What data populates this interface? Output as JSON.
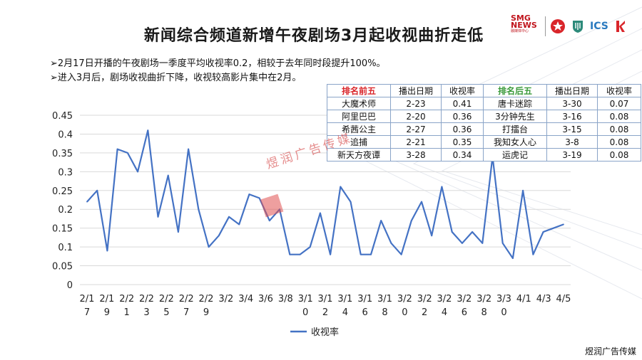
{
  "title": "新闻综合频道新增午夜剧场3月起收视曲折走低",
  "logos": {
    "smg_text": "SMG\nNEWS",
    "smg_sub": "融媒体中心",
    "ics_text": "ICS"
  },
  "bullets": [
    "➢2月17日开播的午夜剧场一季度平均收视率0.2，相较于去年同时段提升100%。",
    "➢进入3月后，剧场收视曲折下降，收视较高影片集中在2月。"
  ],
  "rank_table": {
    "headers": [
      "排名前五",
      "播出日期",
      "收视率",
      "排名后五",
      "播出日期",
      "收视率"
    ],
    "rows": [
      [
        "大魔术师",
        "2-23",
        "0.41",
        "唐卡迷踪",
        "3-30",
        "0.07"
      ],
      [
        "阿里巴巴",
        "2-20",
        "0.36",
        "3分钟先生",
        "3-16",
        "0.08"
      ],
      [
        "希茜公主",
        "2-27",
        "0.36",
        "打擂台",
        "3-15",
        "0.08"
      ],
      [
        "追捕",
        "2-21",
        "0.35",
        "我知女人心",
        "3-8",
        "0.08"
      ],
      [
        "新天方夜谭",
        "3-28",
        "0.34",
        "运虎记",
        "3-19",
        "0.08"
      ]
    ],
    "colors": {
      "top_header": "#d9252a",
      "bottom_header": "#3a9a3a"
    }
  },
  "watermark": "煜润广告传媒",
  "footer_brand": "煜润广告传媒",
  "chart_data": {
    "type": "line",
    "title": "",
    "xlabel": "",
    "ylabel": "",
    "ylim": [
      0,
      0.45
    ],
    "yticks": [
      "0",
      "0.05",
      "0.1",
      "0.15",
      "0.2",
      "0.25",
      "0.3",
      "0.35",
      "0.4",
      "0.45"
    ],
    "x_tick_labels": [
      [
        "2/1",
        "7"
      ],
      [
        "2/1",
        "9"
      ],
      [
        "2/2",
        "1"
      ],
      [
        "2/2",
        "3"
      ],
      [
        "2/2",
        "5"
      ],
      [
        "2/2",
        "7"
      ],
      [
        "2/2",
        "9"
      ],
      [
        "3/2",
        ""
      ],
      [
        "3/4",
        ""
      ],
      [
        "3/6",
        ""
      ],
      [
        "3/8",
        ""
      ],
      [
        "3/1",
        "0"
      ],
      [
        "3/1",
        "2"
      ],
      [
        "3/1",
        "4"
      ],
      [
        "3/1",
        "6"
      ],
      [
        "3/1",
        "8"
      ],
      [
        "3/2",
        "0"
      ],
      [
        "3/2",
        "2"
      ],
      [
        "3/2",
        "4"
      ],
      [
        "3/2",
        "6"
      ],
      [
        "3/2",
        "8"
      ],
      [
        "3/3",
        "0"
      ],
      [
        "4/1",
        ""
      ],
      [
        "4/3",
        ""
      ],
      [
        "4/5",
        ""
      ]
    ],
    "grid": "horizontal",
    "legend": "bottom",
    "series": [
      {
        "name": "收视率",
        "color": "#4472c4",
        "values": [
          0.22,
          0.25,
          0.09,
          0.36,
          0.35,
          0.3,
          0.41,
          0.18,
          0.29,
          0.14,
          0.36,
          0.2,
          0.1,
          0.13,
          0.18,
          0.16,
          0.24,
          0.23,
          0.17,
          0.2,
          0.08,
          0.08,
          0.1,
          0.19,
          0.08,
          0.26,
          0.22,
          0.08,
          0.08,
          0.17,
          0.11,
          0.08,
          0.17,
          0.22,
          0.13,
          0.26,
          0.14,
          0.11,
          0.14,
          0.11,
          0.34,
          0.11,
          0.07,
          0.25,
          0.08,
          0.14,
          0.15,
          0.16
        ]
      }
    ]
  }
}
